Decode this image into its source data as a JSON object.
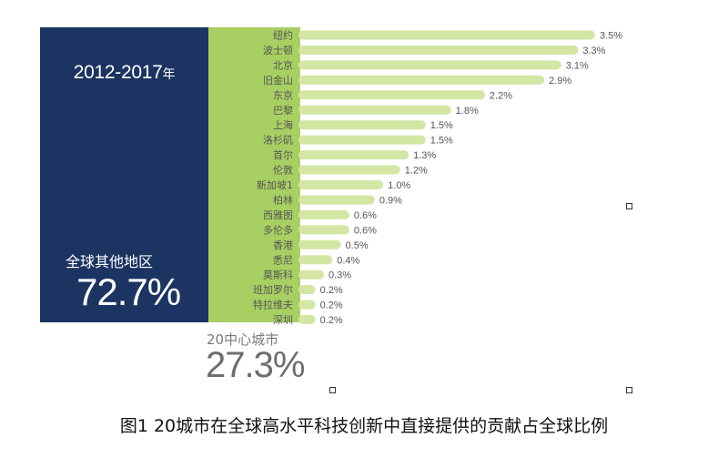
{
  "period": {
    "years": "2012-2017",
    "suffix": "年"
  },
  "rest_of_world": {
    "label": "全球其他地区",
    "value": "72.7%"
  },
  "hub_cities": {
    "label": "20中心城市",
    "value": "27.3%"
  },
  "caption": "图1 20城市在全球高水平科技创新中直接提供的贡献占全球比例",
  "colors": {
    "navy": "#1c3462",
    "green": "#a8cf62",
    "bar": "#d3e6a4"
  },
  "chart_data": {
    "type": "bar",
    "orientation": "horizontal",
    "title": "图1 20城市在全球高水平科技创新中直接提供的贡献占全球比例",
    "unit": "%",
    "categories": [
      "纽约",
      "波士顿",
      "北京",
      "旧金山",
      "东京",
      "巴黎",
      "上海",
      "洛杉矶",
      "首尔",
      "伦敦",
      "新加坡1",
      "柏林",
      "西雅图",
      "多伦多",
      "香港",
      "悉尼",
      "莫斯科",
      "班加罗尔",
      "特拉维夫",
      "深圳"
    ],
    "values": [
      3.5,
      3.3,
      3.1,
      2.9,
      2.2,
      1.8,
      1.5,
      1.5,
      1.3,
      1.2,
      1.0,
      0.9,
      0.6,
      0.6,
      0.5,
      0.4,
      0.3,
      0.2,
      0.2,
      0.2
    ],
    "value_labels": [
      "3.5%",
      "3.3%",
      "3.1%",
      "2.9%",
      "2.2%",
      "1.8%",
      "1.5%",
      "1.5%",
      "1.3%",
      "1.2%",
      "1.0%",
      "0.9%",
      "0.6%",
      "0.6%",
      "0.5%",
      "0.4%",
      "0.3%",
      "0.2%",
      "0.2%",
      "0.2%"
    ],
    "xlim": [
      0,
      3.5
    ]
  }
}
